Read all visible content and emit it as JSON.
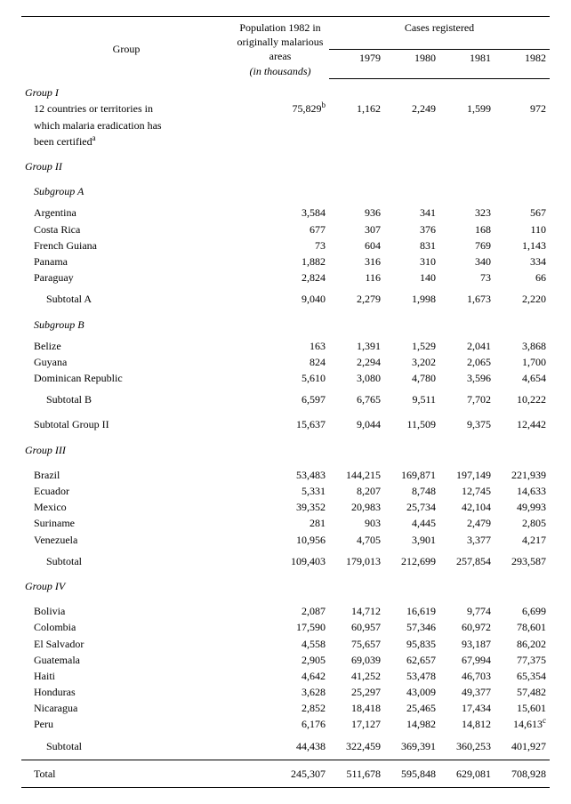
{
  "header": {
    "group": "Group",
    "pop": "Population 1982 in originally malarious areas",
    "pop_unit": "(in thousands)",
    "cases": "Cases registered",
    "years": [
      "1979",
      "1980",
      "1981",
      "1982"
    ]
  },
  "group1": {
    "title": "Group I",
    "desc_a": "12 countries or territories in",
    "desc_b": "which malaria eradication has",
    "desc_c": "been certified",
    "sup_desc": "a",
    "pop": "75,829",
    "sup_pop": "b",
    "vals": [
      "1,162",
      "2,249",
      "1,599",
      "972"
    ]
  },
  "group2": {
    "title": "Group II",
    "subA": {
      "title": "Subgroup A",
      "rows": [
        {
          "label": "Argentina",
          "pop": "3,584",
          "vals": [
            "936",
            "341",
            "323",
            "567"
          ]
        },
        {
          "label": "Costa Rica",
          "pop": "677",
          "vals": [
            "307",
            "376",
            "168",
            "110"
          ]
        },
        {
          "label": "French Guiana",
          "pop": "73",
          "vals": [
            "604",
            "831",
            "769",
            "1,143"
          ]
        },
        {
          "label": "Panama",
          "pop": "1,882",
          "vals": [
            "316",
            "310",
            "340",
            "334"
          ]
        },
        {
          "label": "Paraguay",
          "pop": "2,824",
          "vals": [
            "116",
            "140",
            "73",
            "66"
          ]
        }
      ],
      "subtotal": {
        "label": "Subtotal A",
        "pop": "9,040",
        "vals": [
          "2,279",
          "1,998",
          "1,673",
          "2,220"
        ]
      }
    },
    "subB": {
      "title": "Subgroup B",
      "rows": [
        {
          "label": "Belize",
          "pop": "163",
          "vals": [
            "1,391",
            "1,529",
            "2,041",
            "3,868"
          ]
        },
        {
          "label": "Guyana",
          "pop": "824",
          "vals": [
            "2,294",
            "3,202",
            "2,065",
            "1,700"
          ]
        },
        {
          "label": "Dominican Republic",
          "pop": "5,610",
          "vals": [
            "3,080",
            "4,780",
            "3,596",
            "4,654"
          ]
        }
      ],
      "subtotal": {
        "label": "Subtotal B",
        "pop": "6,597",
        "vals": [
          "6,765",
          "9,511",
          "7,702",
          "10,222"
        ]
      }
    },
    "subtotal": {
      "label": "Subtotal Group II",
      "pop": "15,637",
      "vals": [
        "9,044",
        "11,509",
        "9,375",
        "12,442"
      ]
    }
  },
  "group3": {
    "title": "Group III",
    "rows": [
      {
        "label": "Brazil",
        "pop": "53,483",
        "vals": [
          "144,215",
          "169,871",
          "197,149",
          "221,939"
        ]
      },
      {
        "label": "Ecuador",
        "pop": "5,331",
        "vals": [
          "8,207",
          "8,748",
          "12,745",
          "14,633"
        ]
      },
      {
        "label": "Mexico",
        "pop": "39,352",
        "vals": [
          "20,983",
          "25,734",
          "42,104",
          "49,993"
        ]
      },
      {
        "label": "Suriname",
        "pop": "281",
        "vals": [
          "903",
          "4,445",
          "2,479",
          "2,805"
        ]
      },
      {
        "label": "Venezuela",
        "pop": "10,956",
        "vals": [
          "4,705",
          "3,901",
          "3,377",
          "4,217"
        ]
      }
    ],
    "subtotal": {
      "label": "Subtotal",
      "pop": "109,403",
      "vals": [
        "179,013",
        "212,699",
        "257,854",
        "293,587"
      ]
    }
  },
  "group4": {
    "title": "Group IV",
    "rows": [
      {
        "label": "Bolivia",
        "pop": "2,087",
        "vals": [
          "14,712",
          "16,619",
          "9,774",
          "6,699"
        ]
      },
      {
        "label": "Colombia",
        "pop": "17,590",
        "vals": [
          "60,957",
          "57,346",
          "60,972",
          "78,601"
        ]
      },
      {
        "label": "El Salvador",
        "pop": "4,558",
        "vals": [
          "75,657",
          "95,835",
          "93,187",
          "86,202"
        ]
      },
      {
        "label": "Guatemala",
        "pop": "2,905",
        "vals": [
          "69,039",
          "62,657",
          "67,994",
          "77,375"
        ]
      },
      {
        "label": "Haiti",
        "pop": "4,642",
        "vals": [
          "41,252",
          "53,478",
          "46,703",
          "65,354"
        ]
      },
      {
        "label": "Honduras",
        "pop": "3,628",
        "vals": [
          "25,297",
          "43,009",
          "49,377",
          "57,482"
        ]
      },
      {
        "label": "Nicaragua",
        "pop": "2,852",
        "vals": [
          "18,418",
          "25,465",
          "17,434",
          "15,601"
        ]
      },
      {
        "label": "Peru",
        "pop": "6,176",
        "vals": [
          "17,127",
          "14,982",
          "14,812",
          "14,613"
        ],
        "sup": "c"
      }
    ],
    "subtotal": {
      "label": "Subtotal",
      "pop": "44,438",
      "vals": [
        "322,459",
        "369,391",
        "360,253",
        "401,927"
      ]
    }
  },
  "total": {
    "label": "Total",
    "pop": "245,307",
    "vals": [
      "511,678",
      "595,848",
      "629,081",
      "708,928"
    ]
  }
}
